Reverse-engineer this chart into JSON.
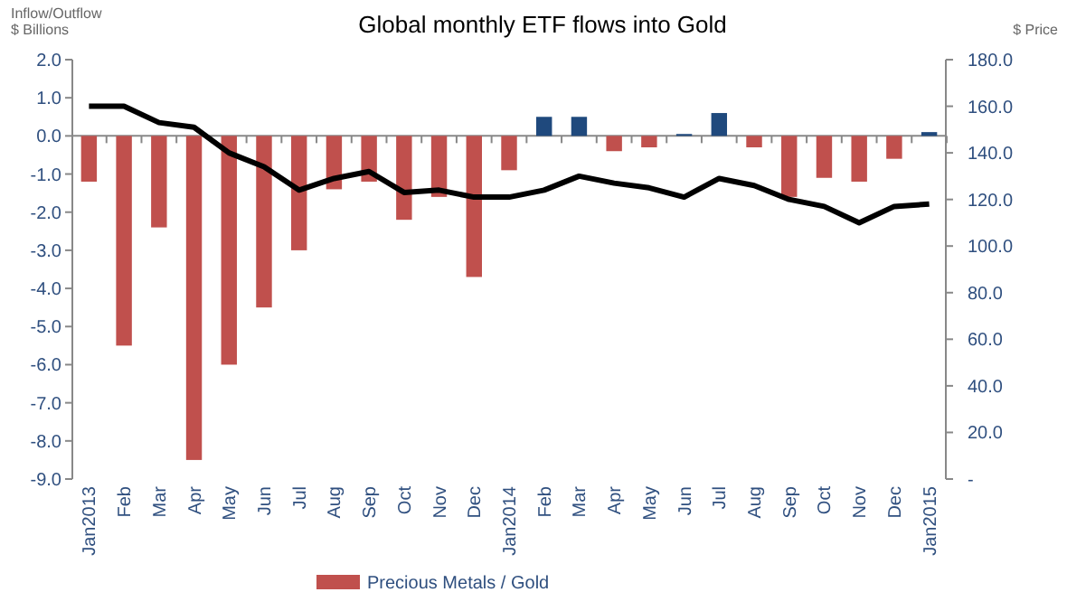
{
  "chart_data": {
    "type": "bar",
    "title": "Global monthly ETF flows into Gold",
    "ylabel": "Inflow/Outflow\n$ Billions",
    "y2label": "$ Price",
    "categories": [
      "Jan2013",
      "Feb",
      "Mar",
      "Apr",
      "May",
      "Jun",
      "Jul",
      "Aug",
      "Sep",
      "Oct",
      "Nov",
      "Dec",
      "Jan2014",
      "Feb",
      "Mar",
      "Apr",
      "May",
      "Jun",
      "Jul",
      "Aug",
      "Sep",
      "Oct",
      "Nov",
      "Dec",
      "Jan2015"
    ],
    "series": [
      {
        "name": "Precious Metals / Gold",
        "color": "#c0504d",
        "colors": [
          "#c0504d",
          "#c0504d",
          "#c0504d",
          "#c0504d",
          "#c0504d",
          "#c0504d",
          "#c0504d",
          "#c0504d",
          "#c0504d",
          "#c0504d",
          "#c0504d",
          "#c0504d",
          "#c0504d",
          "#1f497d",
          "#1f497d",
          "#c0504d",
          "#c0504d",
          "#1f497d",
          "#1f497d",
          "#c0504d",
          "#c0504d",
          "#c0504d",
          "#c0504d",
          "#c0504d",
          "#1f497d"
        ],
        "values": [
          -1.2,
          -5.5,
          -2.4,
          -8.5,
          -6.0,
          -4.5,
          -3.0,
          -1.4,
          -1.2,
          -2.2,
          -1.6,
          -3.7,
          -0.9,
          0.5,
          0.5,
          -0.4,
          -0.3,
          0.05,
          0.6,
          -0.3,
          -1.6,
          -1.1,
          -1.2,
          -0.6,
          0.1
        ]
      },
      {
        "type": "line",
        "axis": "y2",
        "color": "#000000",
        "values": [
          160,
          160,
          153,
          151,
          140,
          134,
          124,
          129,
          132,
          123,
          124,
          121,
          121,
          124,
          130,
          127,
          125,
          121,
          129,
          126,
          120,
          117,
          110,
          117,
          118
        ]
      }
    ],
    "ylim": [
      -9,
      2
    ],
    "yticks": [
      {
        "value": 2,
        "label": "2.0"
      },
      {
        "value": 1,
        "label": "1.0"
      },
      {
        "value": 0,
        "label": "0.0"
      },
      {
        "value": -1,
        "label": "-1.0"
      },
      {
        "value": -2,
        "label": "-2.0"
      },
      {
        "value": -3,
        "label": "-3.0"
      },
      {
        "value": -4,
        "label": "-4.0"
      },
      {
        "value": -5,
        "label": "-5.0"
      },
      {
        "value": -6,
        "label": "-6.0"
      },
      {
        "value": -7,
        "label": "-7.0"
      },
      {
        "value": -8,
        "label": "-8.0"
      },
      {
        "value": -9,
        "label": "-9.0"
      }
    ],
    "y2lim": [
      0,
      180
    ],
    "y2ticks": [
      {
        "value": 0,
        "label": "-"
      },
      {
        "value": 20,
        "label": "20.0"
      },
      {
        "value": 40,
        "label": "40.0"
      },
      {
        "value": 60,
        "label": "60.0"
      },
      {
        "value": 80,
        "label": "80.0"
      },
      {
        "value": 100,
        "label": "100.0"
      },
      {
        "value": 120,
        "label": "120.0"
      },
      {
        "value": 140,
        "label": "140.0"
      },
      {
        "value": 160,
        "label": "160.0"
      },
      {
        "value": 180,
        "label": "180.0"
      }
    ],
    "legend": "bottom"
  }
}
